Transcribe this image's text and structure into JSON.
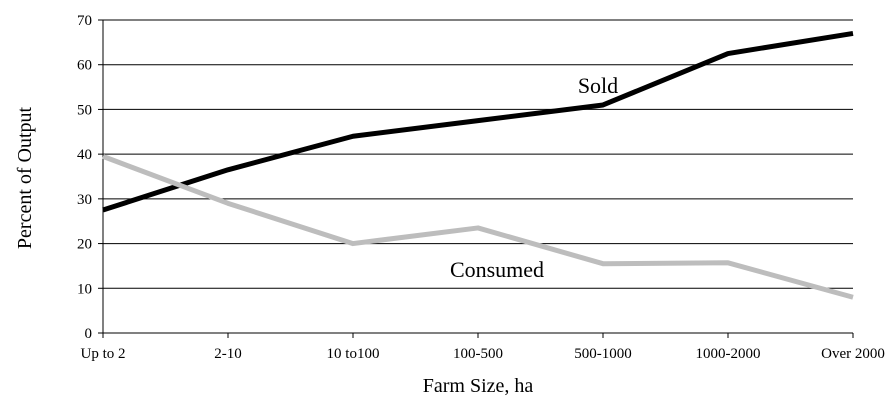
{
  "chart_data": {
    "type": "line",
    "title": "",
    "xlabel": "Farm Size, ha",
    "ylabel": "Percent of Output",
    "categories": [
      "Up to 2",
      "2-10",
      "10 to100",
      "100-500",
      "500-1000",
      "1000-2000",
      "Over 2000"
    ],
    "ylim": [
      0,
      70
    ],
    "yticks": [
      0,
      10,
      20,
      30,
      40,
      50,
      60,
      70
    ],
    "grid": true,
    "legend": "none",
    "series": [
      {
        "name": "Sold",
        "values": [
          27.5,
          36.5,
          44,
          47.5,
          51,
          62.5,
          67
        ],
        "color": "#000000"
      },
      {
        "name": "Consumed",
        "values": [
          39.5,
          29,
          20,
          23.5,
          15.5,
          15.7,
          8
        ],
        "color": "#bdbdbd"
      }
    ]
  }
}
